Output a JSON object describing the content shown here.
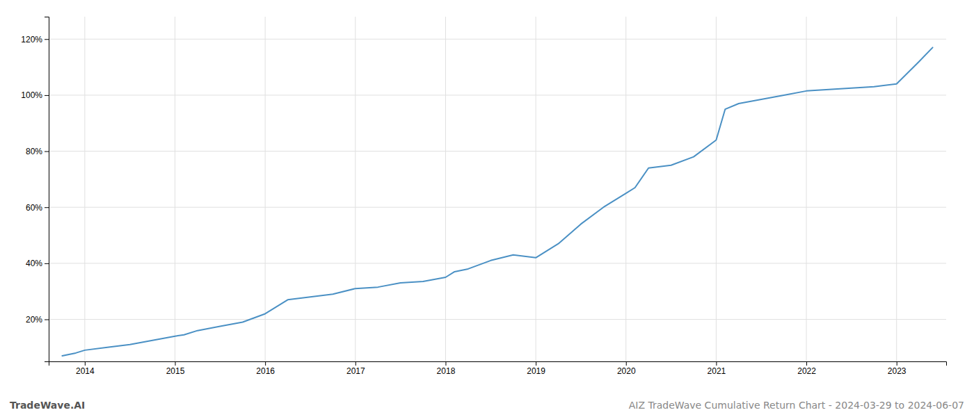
{
  "chart_data": {
    "type": "line",
    "title": "AIZ TradeWave Cumulative Return Chart - 2024-03-29 to 2024-06-07",
    "annotations": [
      "TradeWave.AI"
    ],
    "color": "#4a90c4",
    "grid": true,
    "x": [
      2013.75,
      2013.9,
      2014.0,
      2014.25,
      2014.5,
      2014.75,
      2015.0,
      2015.1,
      2015.25,
      2015.5,
      2015.75,
      2016.0,
      2016.1,
      2016.25,
      2016.5,
      2016.75,
      2017.0,
      2017.25,
      2017.5,
      2017.75,
      2018.0,
      2018.1,
      2018.25,
      2018.5,
      2018.75,
      2019.0,
      2019.25,
      2019.5,
      2019.75,
      2020.0,
      2020.1,
      2020.25,
      2020.5,
      2020.75,
      2021.0,
      2021.1,
      2021.25,
      2021.5,
      2021.75,
      2022.0,
      2022.25,
      2022.5,
      2022.75,
      2023.0,
      2023.25,
      2023.4
    ],
    "values": [
      7,
      8,
      9,
      10,
      11,
      12.5,
      14,
      14.5,
      16,
      17.5,
      19,
      22,
      24,
      27,
      28,
      29,
      31,
      31.5,
      33,
      33.5,
      35,
      37,
      38,
      41,
      43,
      42,
      47,
      54,
      60,
      65,
      67,
      74,
      75,
      78,
      84,
      95,
      97,
      98.5,
      100,
      101.5,
      102,
      102.5,
      103,
      104,
      112,
      117
    ],
    "xlim": [
      2013.6,
      2023.55
    ],
    "xticks": [
      2014,
      2015,
      2016,
      2017,
      2018,
      2019,
      2020,
      2021,
      2022,
      2023
    ],
    "ylim": [
      5,
      128
    ],
    "yticks": [
      {
        "value": 20,
        "label": "20%"
      },
      {
        "value": 40,
        "label": "40%"
      },
      {
        "value": 60,
        "label": "60%"
      },
      {
        "value": 80,
        "label": "80%"
      },
      {
        "value": 100,
        "label": "100%"
      },
      {
        "value": 120,
        "label": "120%"
      }
    ]
  }
}
